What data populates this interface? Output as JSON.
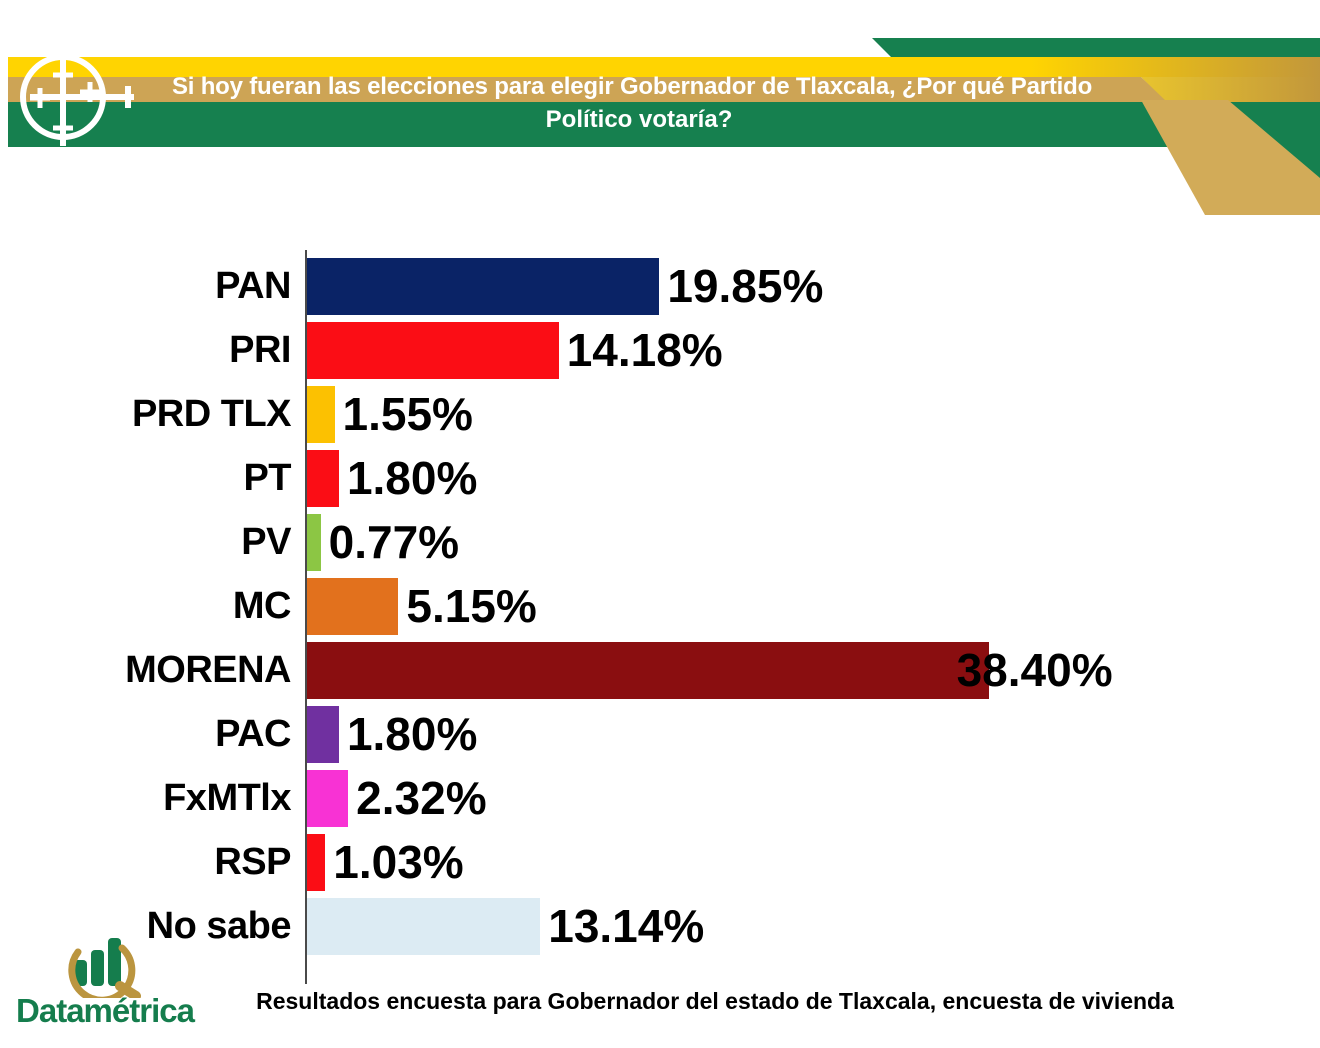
{
  "header": {
    "title_line1": "Si hoy fueran las elecciones para elegir Gobernador de Tlaxcala, ¿Por qué Partido",
    "title_line2": "Político votaría?",
    "colors": {
      "green": "#16804F",
      "yellow": "#FFD401",
      "tan": "#CDA455",
      "ribbon": "#D2AB58",
      "gold_dark": "#C2973B",
      "gold_mid": "#E8C42E"
    },
    "logo_icon": "crosshair-target-icon"
  },
  "chart_data": {
    "type": "bar",
    "orientation": "horizontal",
    "title": "Si hoy fueran las elecciones para elegir Gobernador de Tlaxcala, ¿Por qué Partido Político votaría?",
    "categories": [
      "PAN",
      "PRI",
      "PRD TLX",
      "PT",
      "PV",
      "MC",
      "MORENA",
      "PAC",
      "FxMTlx",
      "RSP",
      "No sabe"
    ],
    "values": [
      19.85,
      14.18,
      1.55,
      1.8,
      0.77,
      5.15,
      38.4,
      1.8,
      2.32,
      1.03,
      13.14
    ],
    "value_labels": [
      "19.85%",
      "14.18%",
      "1.55%",
      "1.80%",
      "0.77%",
      "5.15%",
      "38.40%",
      "1.80%",
      "2.32%",
      "1.03%",
      "13.14%"
    ],
    "colors": [
      "#0A2366",
      "#FB0D15",
      "#FCC101",
      "#FB0D15",
      "#8CC644",
      "#E2711D",
      "#8A0E10",
      "#7030A0",
      "#F832D4",
      "#FB0D15",
      "#DCEBF3"
    ],
    "xlim": [
      0,
      40
    ],
    "grid": false,
    "legend": false,
    "unit": "%"
  },
  "footer": {
    "caption": "Resultados encuesta para Gobernador del estado de Tlaxcala, encuesta de vivienda",
    "brand": "Datamétrica",
    "brand_color": "#157d4d",
    "logo_icon": "magnifier-bar-chart-icon"
  }
}
